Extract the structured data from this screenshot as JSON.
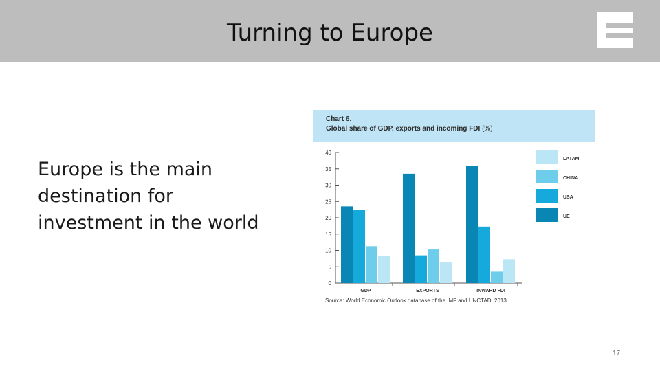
{
  "slide": {
    "title": "Turning to Europe",
    "body_text": "Europe is the main destination for investment in the world",
    "page_number": "17",
    "logo_icon": "letter-e-logo-icon"
  },
  "chart_data": {
    "type": "bar",
    "label": "Chart 6.",
    "title": "Global share of GDP, exports and incoming FDI",
    "unit": "(%)",
    "categories": [
      "GDP",
      "EXPORTS",
      "INWARD FDI"
    ],
    "series": [
      {
        "name": "UE",
        "color": "#0a86b4",
        "values": [
          23.5,
          33.5,
          36
        ]
      },
      {
        "name": "USA",
        "color": "#16a9dc",
        "values": [
          22.5,
          8.5,
          17.3
        ]
      },
      {
        "name": "CHINA",
        "color": "#6ecdea",
        "values": [
          11.3,
          10.3,
          3.5
        ]
      },
      {
        "name": "LATAM",
        "color": "#bbe6f6",
        "values": [
          8.3,
          6.3,
          7.3
        ]
      }
    ],
    "legend": [
      {
        "name": "LATAM",
        "color": "#bbe6f6"
      },
      {
        "name": "CHINA",
        "color": "#6ecdea"
      },
      {
        "name": "USA",
        "color": "#16a9dc"
      },
      {
        "name": "UE",
        "color": "#0a86b4"
      }
    ],
    "ylim": [
      0,
      40
    ],
    "yticks": [
      0,
      5,
      10,
      15,
      20,
      25,
      30,
      35,
      40
    ],
    "legend_position": "right",
    "grid": false,
    "source": "Source: World Economic Outlook database of the IMF and UNCTAD, 2013"
  }
}
